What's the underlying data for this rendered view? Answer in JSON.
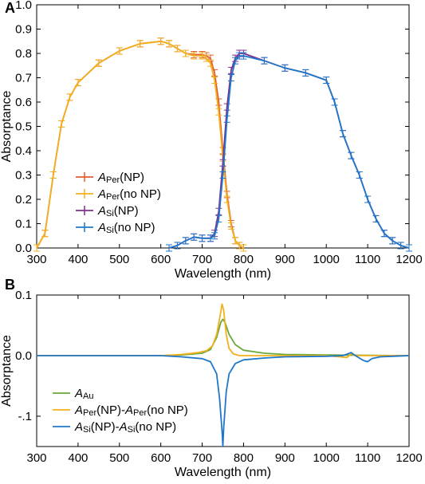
{
  "figure": {
    "panel_a_label": "A",
    "panel_b_label": "B"
  },
  "colors": {
    "per_np": "#e25b2d",
    "per_no_np": "#f2b01e",
    "si_np": "#7e2f8e",
    "si_no_np": "#1f77c9",
    "au_np": "#6aaa3a"
  },
  "chart_data": [
    {
      "type": "line",
      "panel": "A",
      "xlabel": "Wavelength (nm)",
      "ylabel": "Absorptance",
      "xlim": [
        300,
        1200
      ],
      "ylim": [
        0,
        1.0
      ],
      "xticks": [
        300,
        400,
        500,
        600,
        700,
        800,
        900,
        1000,
        1100,
        1200
      ],
      "yticks": [
        0.0,
        0.1,
        0.2,
        0.3,
        0.4,
        0.5,
        0.6,
        0.7,
        0.8,
        0.9,
        1.0
      ],
      "ytick_labels": [
        "0.0",
        "0.1",
        "0.2",
        "0.3",
        "0.4",
        "0.5",
        "0.6",
        "0.7",
        "0.8",
        "0.9",
        "1.0"
      ],
      "legend_position": "lower-left",
      "error_bars": true,
      "series": [
        {
          "name": "APer(NP)",
          "italic": "A",
          "sub": "Per",
          "suffix": "(NP)",
          "color_key": "per_np",
          "x": [
            300,
            320,
            340,
            360,
            380,
            400,
            450,
            500,
            550,
            600,
            620,
            640,
            660,
            680,
            700,
            710,
            720,
            730,
            740,
            750,
            760,
            770,
            780,
            790,
            800
          ],
          "y": [
            0.0,
            0.06,
            0.3,
            0.51,
            0.62,
            0.68,
            0.76,
            0.81,
            0.84,
            0.85,
            0.84,
            0.82,
            0.8,
            0.795,
            0.795,
            0.79,
            0.78,
            0.72,
            0.6,
            0.4,
            0.22,
            0.1,
            0.03,
            0.01,
            0.0
          ]
        },
        {
          "name": "APer(no NP)",
          "italic": "A",
          "sub": "Per",
          "suffix": "(no NP)",
          "color_key": "per_no_np",
          "x": [
            300,
            320,
            340,
            360,
            380,
            400,
            450,
            500,
            550,
            600,
            620,
            640,
            660,
            680,
            700,
            710,
            720,
            730,
            740,
            750,
            760,
            770,
            780,
            790,
            800
          ],
          "y": [
            0.0,
            0.06,
            0.3,
            0.51,
            0.62,
            0.68,
            0.76,
            0.81,
            0.84,
            0.85,
            0.84,
            0.82,
            0.8,
            0.79,
            0.79,
            0.78,
            0.76,
            0.69,
            0.56,
            0.37,
            0.2,
            0.09,
            0.03,
            0.01,
            0.0
          ]
        },
        {
          "name": "ASi(NP)",
          "italic": "A",
          "sub": "Si",
          "suffix": "(NP)",
          "color_key": "si_np",
          "x": [
            620,
            640,
            660,
            680,
            700,
            720,
            730,
            740,
            750,
            760,
            770,
            780,
            790,
            800,
            850,
            900,
            950,
            1000,
            1020,
            1040,
            1060,
            1080,
            1100,
            1120,
            1140,
            1160,
            1180,
            1200
          ],
          "y": [
            0.0,
            0.01,
            0.03,
            0.045,
            0.04,
            0.04,
            0.06,
            0.15,
            0.35,
            0.58,
            0.73,
            0.78,
            0.8,
            0.8,
            0.77,
            0.74,
            0.72,
            0.69,
            0.6,
            0.47,
            0.38,
            0.3,
            0.2,
            0.12,
            0.06,
            0.03,
            0.01,
            0.0
          ]
        },
        {
          "name": "ASi(no NP)",
          "italic": "A",
          "sub": "Si",
          "suffix": "(no NP)",
          "color_key": "si_no_np",
          "x": [
            620,
            640,
            660,
            680,
            700,
            720,
            730,
            740,
            750,
            760,
            770,
            780,
            790,
            800,
            850,
            900,
            950,
            1000,
            1020,
            1040,
            1060,
            1080,
            1100,
            1120,
            1140,
            1160,
            1180,
            1200
          ],
          "y": [
            0.0,
            0.01,
            0.03,
            0.045,
            0.04,
            0.04,
            0.05,
            0.12,
            0.3,
            0.53,
            0.7,
            0.77,
            0.79,
            0.79,
            0.77,
            0.74,
            0.72,
            0.69,
            0.6,
            0.47,
            0.38,
            0.3,
            0.2,
            0.12,
            0.06,
            0.03,
            0.01,
            0.0
          ]
        }
      ]
    },
    {
      "type": "line",
      "panel": "B",
      "xlabel": "Wavelength (nm)",
      "ylabel": "Absorptance",
      "xlim": [
        300,
        1200
      ],
      "ylim": [
        -0.15,
        0.1
      ],
      "xticks": [
        300,
        400,
        500,
        600,
        700,
        800,
        900,
        1000,
        1100,
        1200
      ],
      "yticks": [
        -0.1,
        0.0,
        0.1
      ],
      "ytick_labels": [
        "-.1",
        "0.0",
        "0.1"
      ],
      "legend_position": "lower-left",
      "series": [
        {
          "name": "AAu(NP)",
          "italic": "A",
          "sub": "Au",
          "color_key": "au_np",
          "x": [
            300,
            600,
            650,
            700,
            720,
            735,
            745,
            750,
            755,
            765,
            780,
            800,
            850,
            900,
            1000,
            1200
          ],
          "y": [
            0.0,
            0.0,
            0.001,
            0.004,
            0.01,
            0.03,
            0.055,
            0.06,
            0.055,
            0.035,
            0.018,
            0.009,
            0.004,
            0.002,
            0.001,
            0.0
          ]
        },
        {
          "name": "APer(NP)-APer(no NP)",
          "italic": "A",
          "sub": "Per",
          "mid": "(NP)-",
          "italic2": "A",
          "sub2": "Per",
          "suffix": "(no NP)",
          "color_key": "per_no_np",
          "x": [
            300,
            600,
            650,
            690,
            710,
            725,
            735,
            742,
            748,
            752,
            758,
            765,
            775,
            790,
            1000,
            1050,
            1060,
            1070,
            1200
          ],
          "y": [
            0.0,
            0.0,
            0.002,
            0.005,
            0.008,
            0.016,
            0.035,
            0.06,
            0.085,
            0.075,
            0.035,
            0.012,
            0.003,
            0.0,
            0.0,
            -0.003,
            0.003,
            0.0,
            0.0
          ]
        },
        {
          "name": "ASi(NP)-ASi(no NP)",
          "italic": "A",
          "sub": "Si",
          "mid": "(NP)-",
          "italic2": "A",
          "sub2": "Si",
          "suffix": "(no NP)",
          "color_key": "si_no_np",
          "x": [
            300,
            600,
            650,
            700,
            720,
            735,
            742,
            748,
            750,
            752,
            758,
            765,
            780,
            800,
            850,
            900,
            1000,
            1040,
            1060,
            1075,
            1090,
            1100,
            1110,
            1130,
            1200
          ],
          "y": [
            0.0,
            0.0,
            -0.002,
            -0.005,
            -0.01,
            -0.03,
            -0.07,
            -0.125,
            -0.15,
            -0.12,
            -0.06,
            -0.03,
            -0.013,
            -0.007,
            -0.004,
            -0.002,
            -0.001,
            0.0,
            0.005,
            -0.002,
            -0.008,
            -0.01,
            -0.005,
            -0.002,
            0.0
          ]
        }
      ]
    }
  ]
}
